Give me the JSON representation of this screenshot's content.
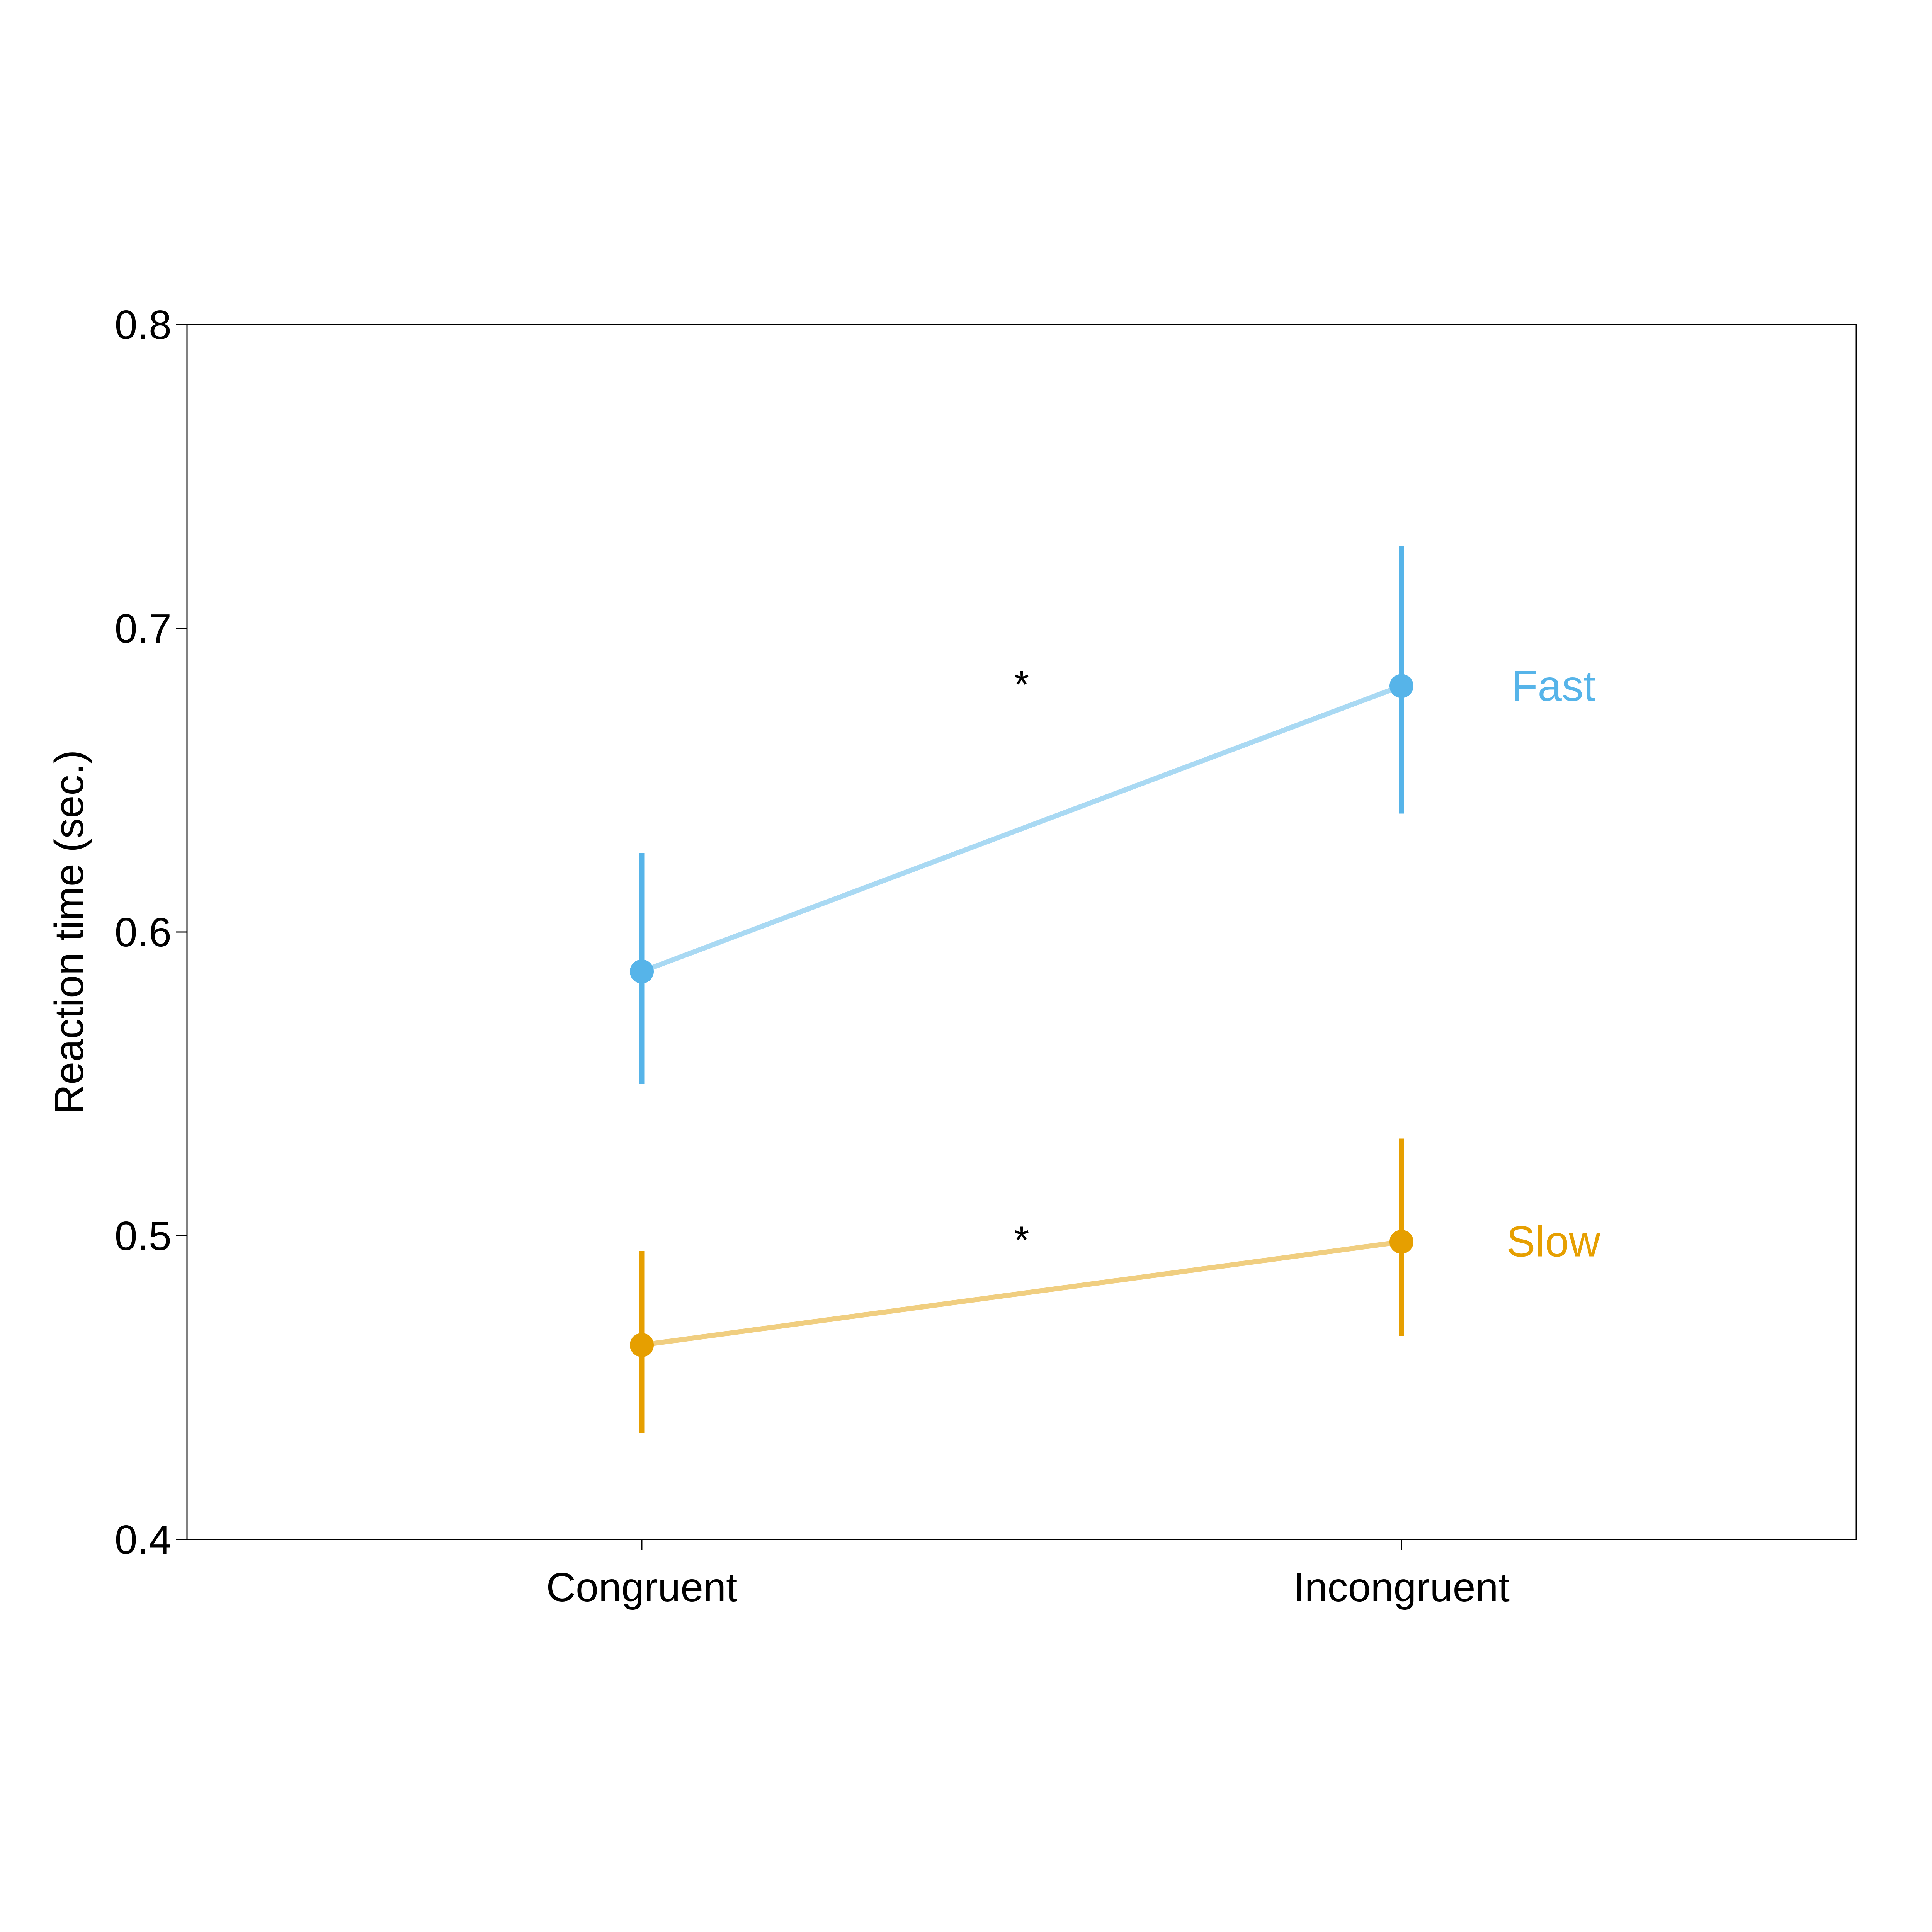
{
  "chart_data": {
    "type": "line",
    "title": "",
    "xlabel": "",
    "ylabel": "Reaction time (sec.)",
    "categories": [
      "Congruent",
      "Incongruent"
    ],
    "ylim": [
      0.4,
      0.8
    ],
    "yticks": [
      "0.4",
      "0.5",
      "0.6",
      "0.7",
      "0.8"
    ],
    "grid": false,
    "legend": "direct labels at right end of each line",
    "series": [
      {
        "name": "Fast",
        "color": "#56B4E9",
        "line_color": "#A9D9F3",
        "values": [
          0.587,
          0.681
        ],
        "error_low": [
          0.55,
          0.639
        ],
        "error_high": [
          0.626,
          0.727
        ]
      },
      {
        "name": "Slow",
        "color": "#E69F00",
        "line_color": "#F0CE80",
        "values": [
          0.464,
          0.498
        ],
        "error_low": [
          0.435,
          0.467
        ],
        "error_high": [
          0.495,
          0.532
        ]
      }
    ],
    "annotations": [
      {
        "text": "*",
        "x": 0.5,
        "y": 0.681
      },
      {
        "text": "*",
        "x": 0.5,
        "y": 0.498
      }
    ]
  }
}
